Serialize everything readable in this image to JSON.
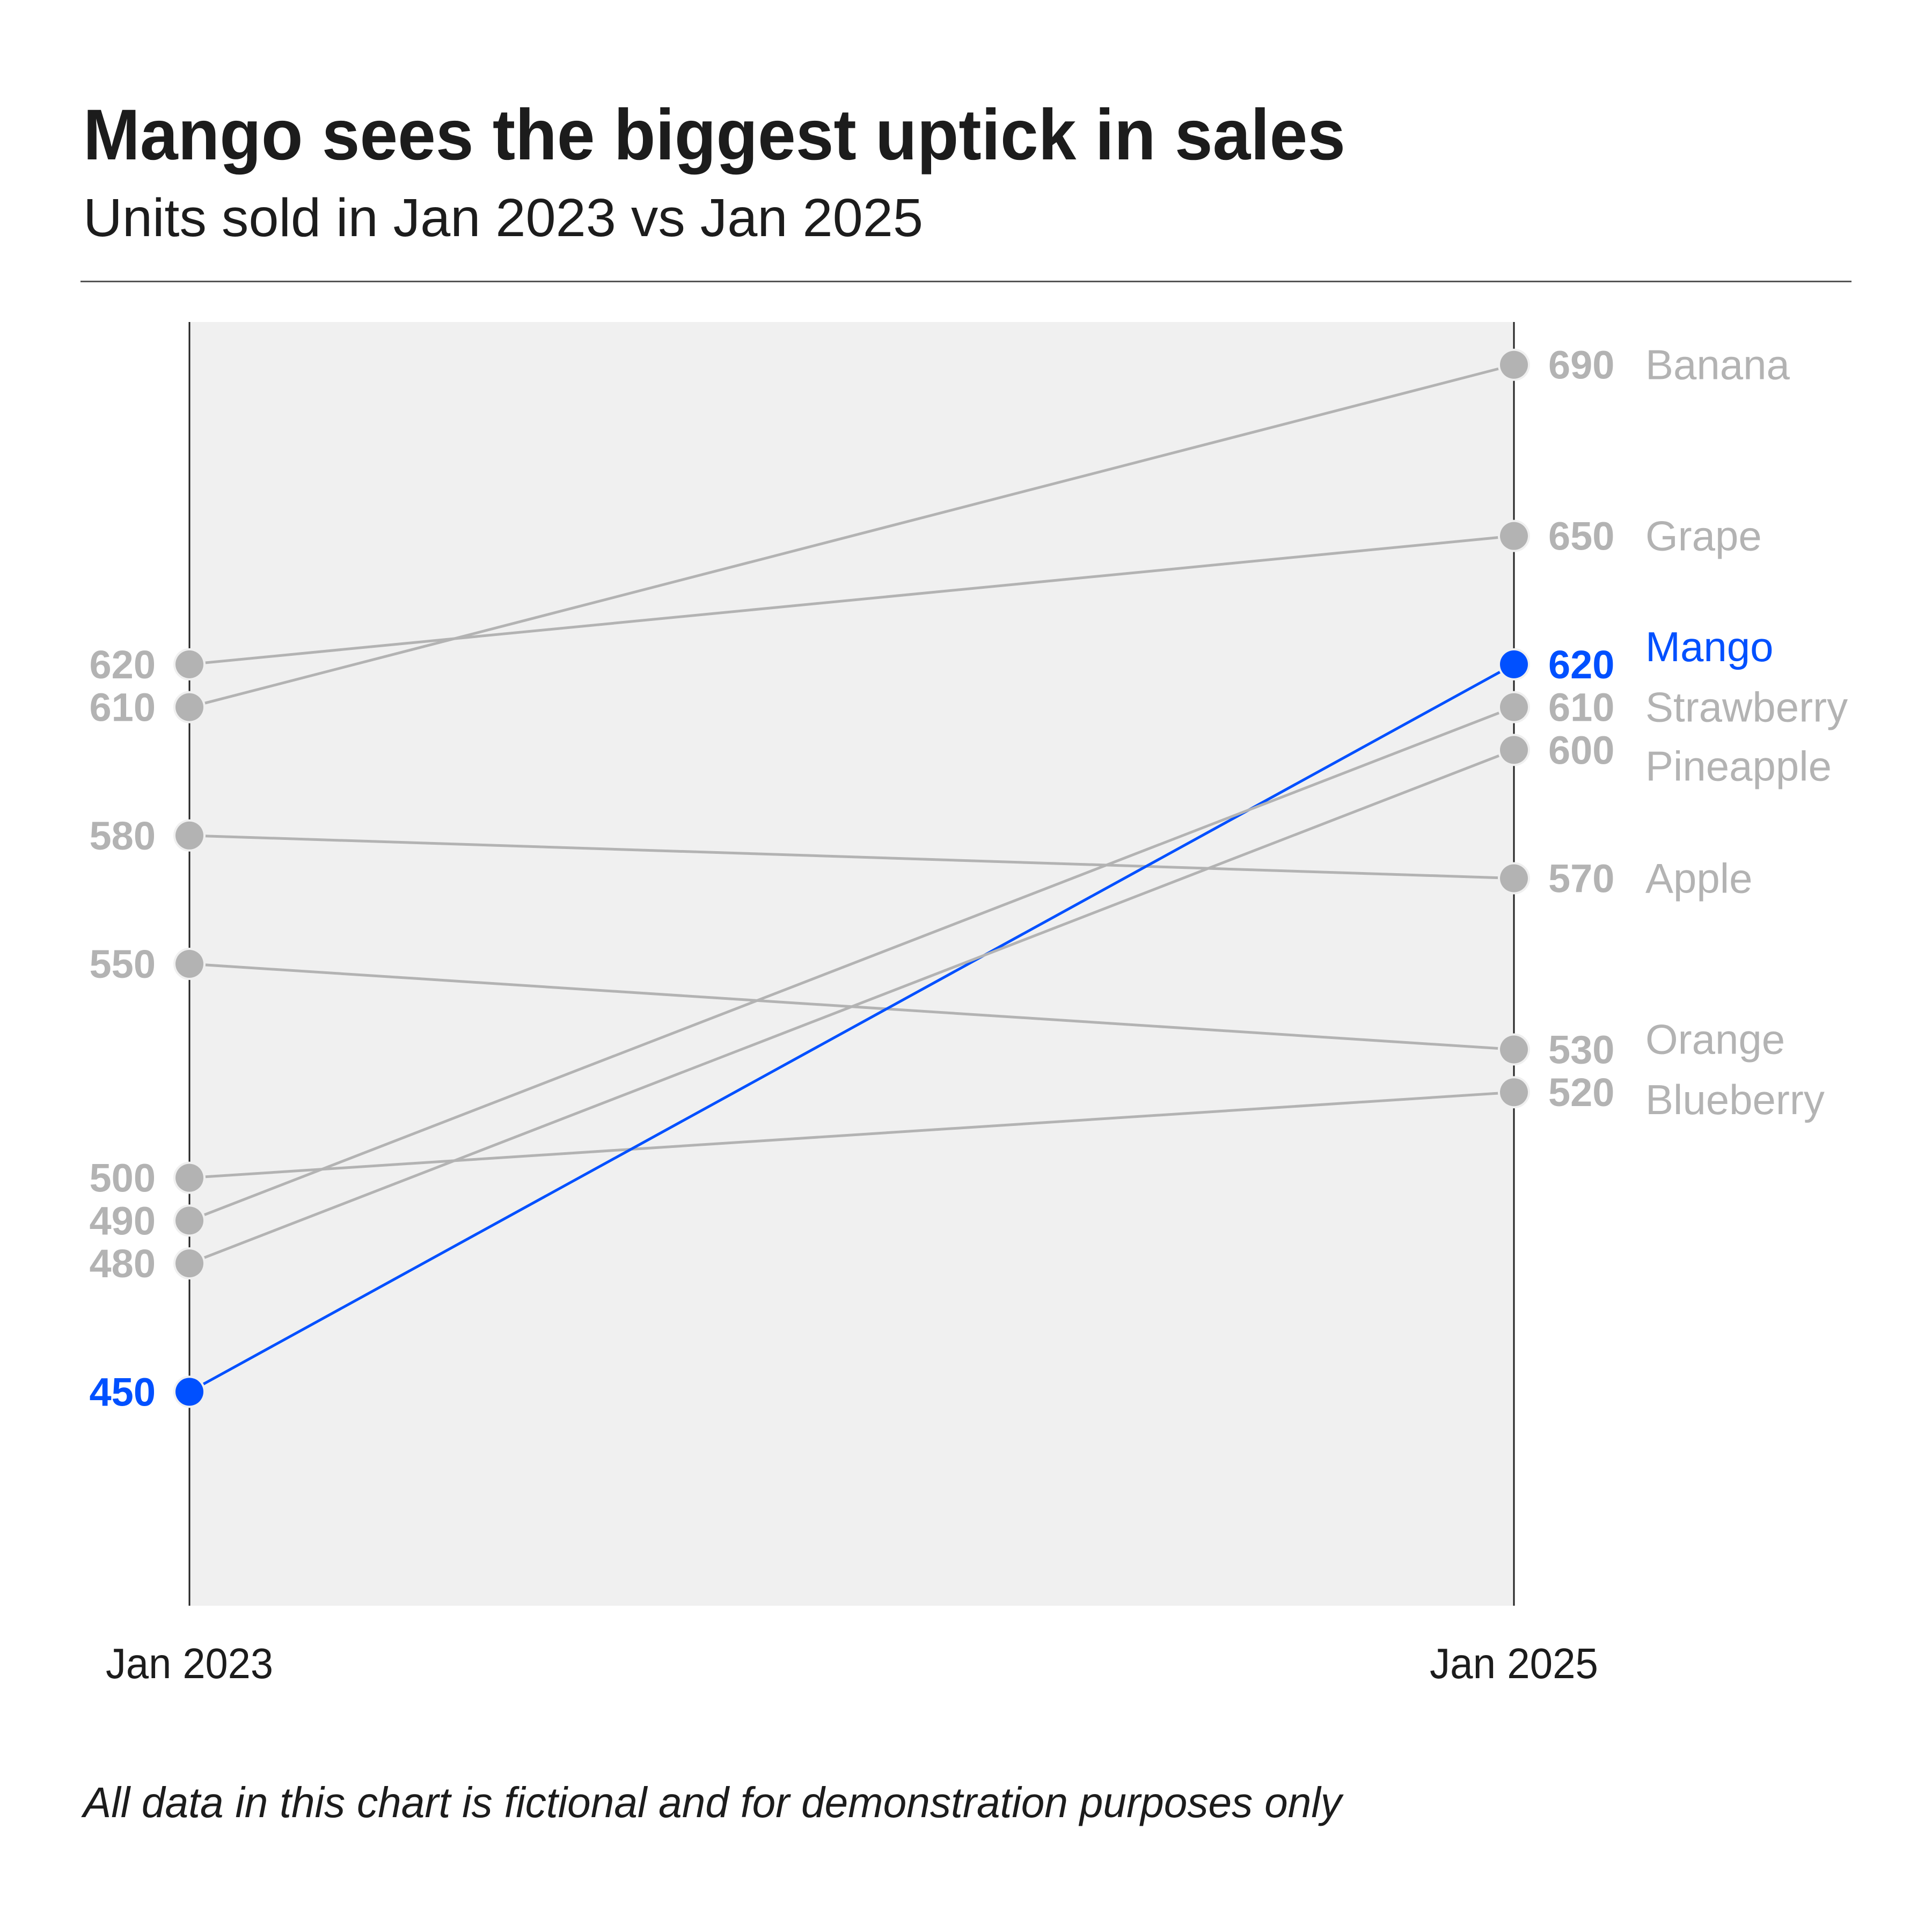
{
  "header": {
    "title": "Mango sees the biggest uptick in sales",
    "subtitle": "Units sold in Jan 2023 vs Jan 2025"
  },
  "footer": {
    "note": "All data in this chart is fictional and for demonstration purposes only"
  },
  "axes": {
    "left_label": "Jan 2023",
    "right_label": "Jan 2025"
  },
  "colors": {
    "highlight": "#0050ff",
    "muted": "#b3b3b3",
    "plot_background": "#f0f0f0",
    "axis_line": "#222222",
    "rule": "#555555",
    "text": "#1c1c1c"
  },
  "chart_data": {
    "type": "slope",
    "title": "Mango sees the biggest uptick in sales",
    "subtitle": "Units sold in Jan 2023 vs Jan 2025",
    "categories": [
      "Jan 2023",
      "Jan 2025"
    ],
    "xlabel": "",
    "ylabel": "Units sold",
    "ylim": [
      400,
      700
    ],
    "grid": false,
    "legend": "direct labels at right end of lines",
    "highlight": "Mango",
    "series": [
      {
        "name": "Banana",
        "values": [
          610,
          690
        ],
        "highlight": false,
        "name_dy": 0
      },
      {
        "name": "Grape",
        "values": [
          620,
          650
        ],
        "highlight": false,
        "name_dy": 0
      },
      {
        "name": "Apple",
        "values": [
          580,
          570
        ],
        "highlight": false,
        "name_dy": 0
      },
      {
        "name": "Orange",
        "values": [
          550,
          530
        ],
        "highlight": false,
        "name_dy": -19
      },
      {
        "name": "Blueberry",
        "values": [
          500,
          520
        ],
        "highlight": false,
        "name_dy": 14
      },
      {
        "name": "Mango",
        "values": [
          450,
          620
        ],
        "highlight": true,
        "name_dy": -33
      },
      {
        "name": "Strawberry",
        "values": [
          490,
          610
        ],
        "highlight": false,
        "name_dy": 0
      },
      {
        "name": "Pineapple",
        "values": [
          480,
          600
        ],
        "highlight": false,
        "name_dy": 30
      }
    ],
    "annotations": [
      "All data in this chart is fictional and for demonstration purposes only"
    ]
  }
}
